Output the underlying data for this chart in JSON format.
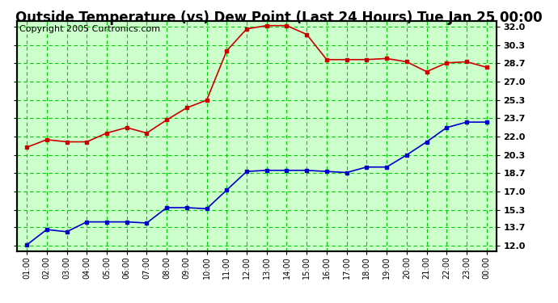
{
  "title": "Outside Temperature (vs) Dew Point (Last 24 Hours) Tue Jan 25 00:00",
  "copyright": "Copyright 2005 Curtronics.com",
  "x_labels": [
    "01:00",
    "02:00",
    "03:00",
    "04:00",
    "05:00",
    "06:00",
    "07:00",
    "08:00",
    "09:00",
    "10:00",
    "11:00",
    "12:00",
    "13:00",
    "14:00",
    "15:00",
    "16:00",
    "17:00",
    "18:00",
    "19:00",
    "20:00",
    "21:00",
    "22:00",
    "23:00",
    "00:00"
  ],
  "red_data": [
    21.0,
    21.7,
    21.5,
    21.5,
    22.3,
    22.8,
    22.3,
    23.5,
    24.6,
    25.3,
    29.8,
    31.8,
    32.1,
    32.1,
    31.3,
    29.0,
    29.0,
    29.0,
    29.1,
    28.8,
    27.9,
    28.7,
    28.8,
    28.3
  ],
  "blue_data": [
    12.1,
    13.5,
    13.3,
    14.2,
    14.2,
    14.2,
    14.1,
    15.5,
    15.5,
    15.4,
    17.1,
    18.8,
    18.9,
    18.9,
    18.9,
    18.8,
    18.7,
    19.2,
    19.2,
    20.3,
    21.5,
    22.8,
    23.3,
    23.3
  ],
  "red_color": "#cc0000",
  "blue_color": "#0000cc",
  "bg_color": "#ccffcc",
  "grid_color": "#00cc00",
  "y_ticks": [
    12.0,
    13.7,
    15.3,
    17.0,
    18.7,
    20.3,
    22.0,
    23.7,
    25.3,
    27.0,
    28.7,
    30.3,
    32.0
  ],
  "ylim": [
    11.5,
    32.5
  ],
  "title_fontsize": 12,
  "copyright_fontsize": 8,
  "marker": "s",
  "marker_size": 3,
  "linewidth": 1.2
}
